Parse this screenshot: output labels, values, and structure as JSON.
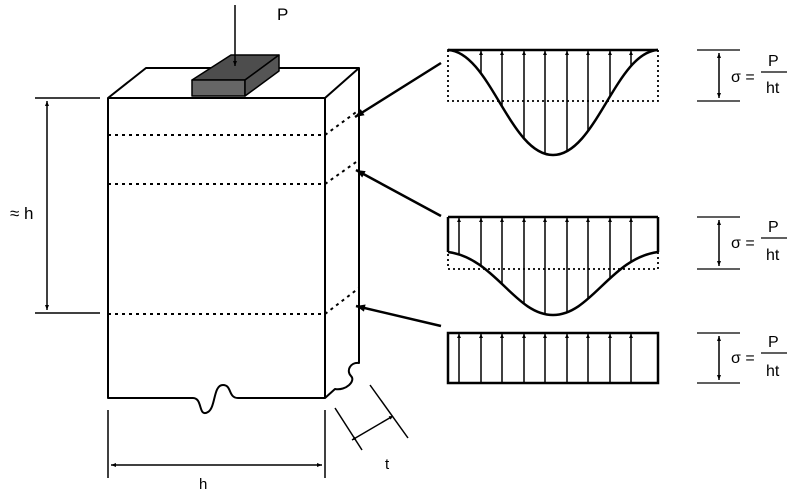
{
  "labels": {
    "load": "P",
    "height_approx": "≈ h",
    "width": "h",
    "thickness": "t"
  },
  "stress_formulas": [
    {
      "lhs": "σ =",
      "numerator": "P",
      "denominator": "ht"
    },
    {
      "lhs": "σ =",
      "numerator": "P",
      "denominator": "ht"
    },
    {
      "lhs": "σ =",
      "numerator": "P",
      "denominator": "ht"
    }
  ],
  "colors": {
    "ink": "#000000",
    "bearing_plate_front": "#666666",
    "bearing_plate_top": "#4d4d4d"
  }
}
